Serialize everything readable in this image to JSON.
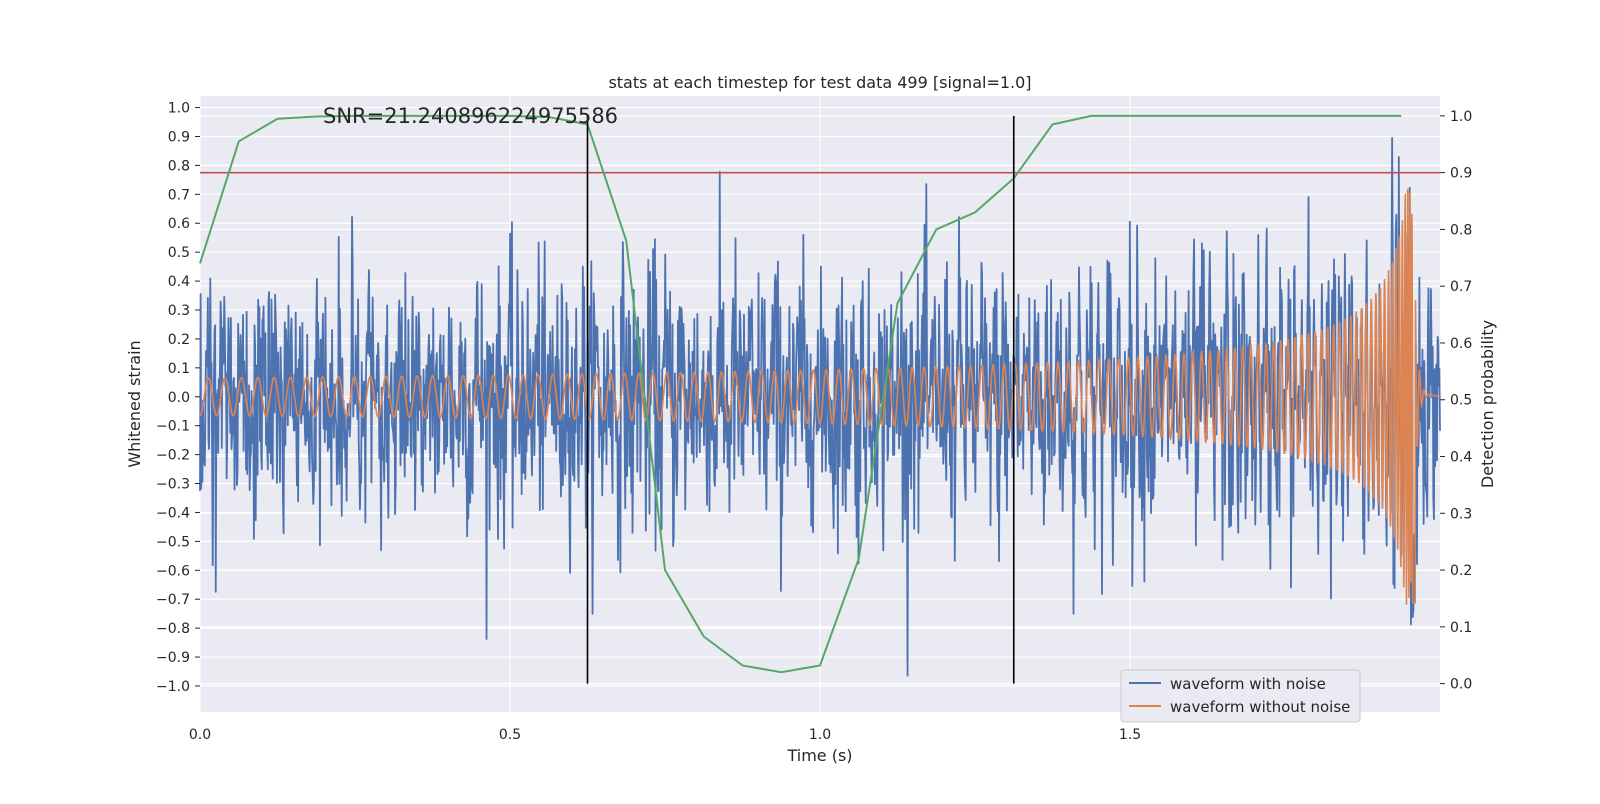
{
  "chart_data": {
    "type": "line",
    "title": "stats at each timestep for test data 499 [signal=1.0]",
    "annotation": "SNR=21.240896224975586",
    "xlabel": "Time (s)",
    "ylabel": "Whitened strain",
    "ylabel_right": "Detection probability",
    "xlim": [
      0.0,
      2.0
    ],
    "ylim": [
      -1.09,
      1.04
    ],
    "ylim_right": [
      -0.05,
      1.035
    ],
    "x_ticks": [
      0.0,
      0.5,
      1.0,
      1.5
    ],
    "x_tick_labels": [
      "0.0",
      "0.5",
      "1.0",
      "1.5"
    ],
    "y_ticks": [
      -1.0,
      -0.9,
      -0.8,
      -0.7,
      -0.6,
      -0.5,
      -0.4,
      -0.3,
      -0.2,
      -0.1,
      0.0,
      0.1,
      0.2,
      0.3,
      0.4,
      0.5,
      0.6,
      0.7,
      0.8,
      0.9,
      1.0
    ],
    "y_tick_labels": [
      "−1.0",
      "−0.9",
      "−0.8",
      "−0.7",
      "−0.6",
      "−0.5",
      "−0.4",
      "−0.3",
      "−0.2",
      "−0.1",
      "0.0",
      "0.1",
      "0.2",
      "0.3",
      "0.4",
      "0.5",
      "0.6",
      "0.7",
      "0.8",
      "0.9",
      "1.0"
    ],
    "y_right_ticks": [
      0.0,
      0.1,
      0.2,
      0.3,
      0.4,
      0.5,
      0.6,
      0.7,
      0.8,
      0.9,
      1.0
    ],
    "y_right_tick_labels": [
      "0.0",
      "0.1",
      "0.2",
      "0.3",
      "0.4",
      "0.5",
      "0.6",
      "0.7",
      "0.8",
      "0.9",
      "1.0"
    ],
    "grid": true,
    "legend_position": "lower-right",
    "series": [
      {
        "name": "waveform with noise",
        "color": "#4c72b0",
        "axis": "left",
        "description": "dense noisy strain, roughly ±0.3 amplitude with spikes up to ±0.9",
        "x_range": [
          0.0,
          2.0
        ],
        "samples": 2048,
        "noise_std": 0.22
      },
      {
        "name": "waveform without noise",
        "color": "#dd8452",
        "axis": "left",
        "description": "chirp waveform, amplitude growing from ~0.06 to ~0.7 before merger near t=1.96",
        "x_range": [
          0.0,
          2.0
        ],
        "merger_time": 1.96,
        "amplitude_start": 0.065,
        "amplitude_peak": 0.72
      },
      {
        "name": "detection probability",
        "color": "#55a868",
        "axis": "right",
        "x": [
          0.0,
          0.0625,
          0.125,
          0.1875,
          0.25,
          0.3125,
          0.375,
          0.4375,
          0.5,
          0.5625,
          0.625,
          0.6875,
          0.75,
          0.8125,
          0.875,
          0.9375,
          1.0,
          1.0625,
          1.125,
          1.1875,
          1.25,
          1.3125,
          1.375,
          1.4375,
          1.5,
          1.5625,
          1.625,
          1.6875,
          1.75,
          1.8125,
          1.875,
          1.9375
        ],
        "values": [
          0.74,
          0.955,
          0.995,
          0.999,
          1.0,
          1.0,
          1.0,
          1.0,
          1.0,
          0.998,
          0.985,
          0.78,
          0.2,
          0.083,
          0.032,
          0.02,
          0.032,
          0.22,
          0.67,
          0.8,
          0.83,
          0.89,
          0.985,
          1.0,
          1.0,
          1.0,
          1.0,
          1.0,
          1.0,
          1.0,
          1.0,
          1.0
        ]
      }
    ],
    "threshold": {
      "axis": "right",
      "value": 0.9,
      "color": "#c44e52"
    },
    "vertical_markers": {
      "x": [
        0.625,
        1.3125
      ],
      "y_range_right": [
        0.0,
        1.0
      ],
      "color": "#000000"
    }
  }
}
